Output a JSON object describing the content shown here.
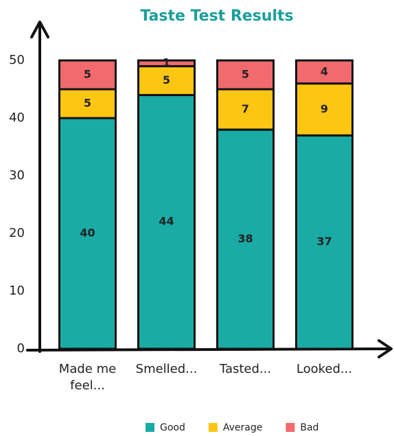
{
  "chart_data": {
    "type": "bar",
    "stacked": true,
    "title": "Taste Test Results",
    "categories": [
      "Made me feel...",
      "Smelled...",
      "Tasted...",
      "Looked..."
    ],
    "series": [
      {
        "name": "Good",
        "color": "#1aaba5",
        "values": [
          40,
          44,
          38,
          37
        ]
      },
      {
        "name": "Average",
        "color": "#fcc612",
        "values": [
          5,
          5,
          7,
          9
        ]
      },
      {
        "name": "Bad",
        "color": "#f06a6e",
        "values": [
          5,
          1,
          5,
          4
        ]
      }
    ],
    "ylim": [
      0,
      50
    ],
    "yticks": [
      0,
      10,
      20,
      30,
      40,
      50
    ],
    "grid": false,
    "legend": "bottom"
  }
}
